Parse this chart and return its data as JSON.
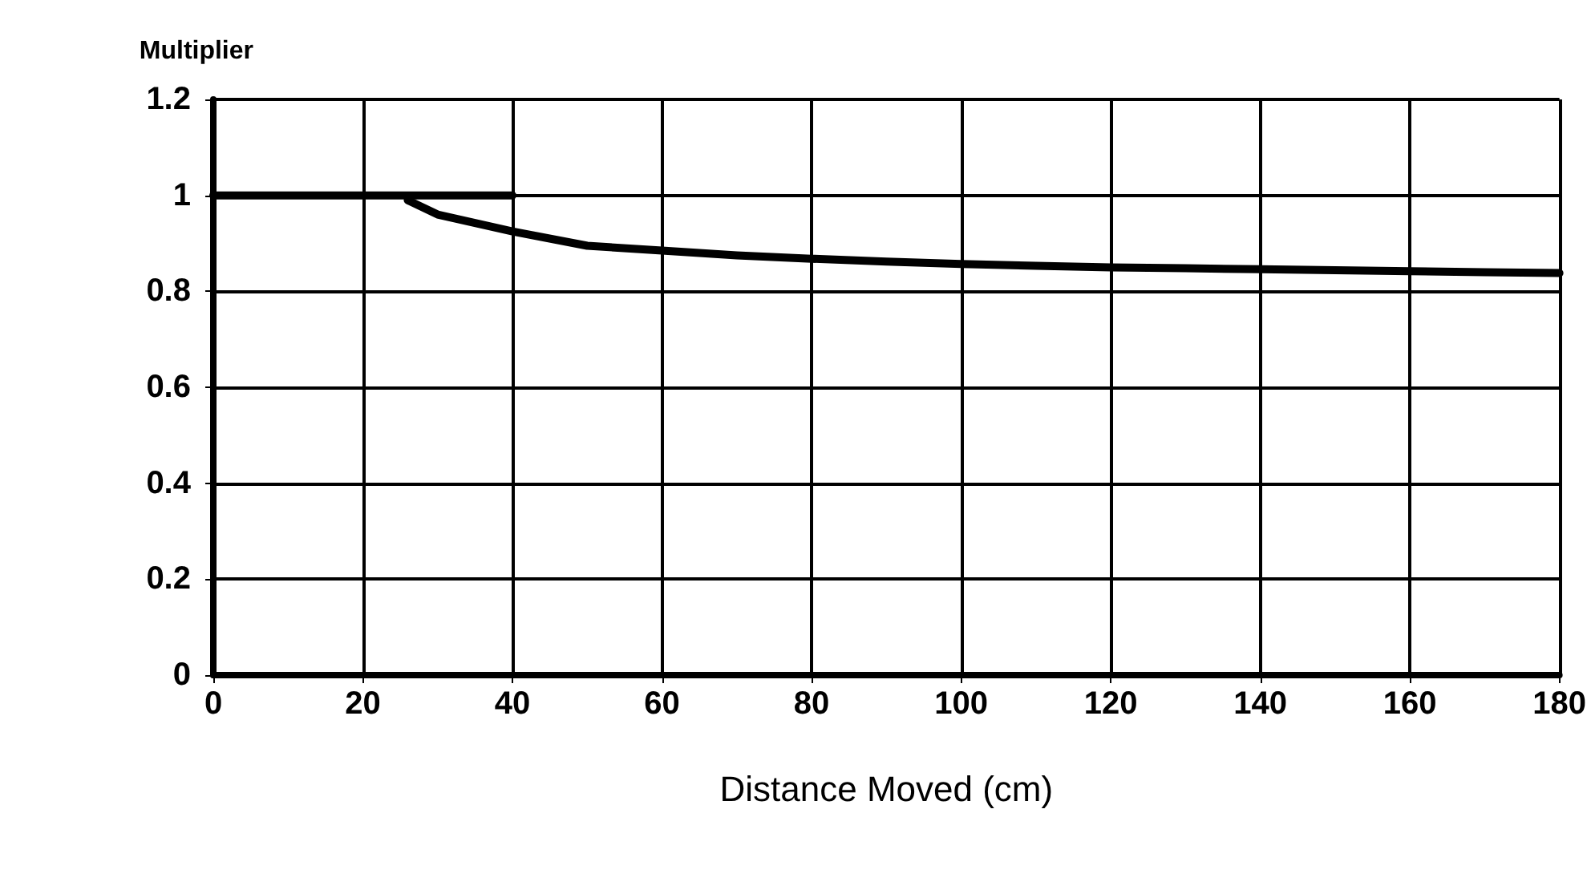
{
  "chart_data": {
    "type": "line",
    "xlabel": "Distance Moved (cm)",
    "ylabel": "Multiplier",
    "xlim": [
      0,
      180
    ],
    "xticks": [
      0,
      20,
      40,
      60,
      80,
      100,
      120,
      140,
      160,
      180
    ],
    "ylim": [
      0,
      1.2
    ],
    "yticks": [
      0,
      0.2,
      0.4,
      0.6,
      0.8,
      1,
      1.2
    ],
    "grid": true,
    "marker": "none",
    "line_style": "solid",
    "series": [
      {
        "color": "#000000",
        "x": [
          0,
          40
        ],
        "values": [
          1,
          1
        ]
      },
      {
        "color": "#000000",
        "x": [
          26,
          30,
          40,
          50,
          60,
          70,
          80,
          90,
          100,
          110,
          120,
          130,
          140,
          150,
          160,
          170,
          180
        ],
        "values": [
          0.99,
          0.96,
          0.925,
          0.895,
          0.885,
          0.875,
          0.868,
          0.862,
          0.857,
          0.853,
          0.85,
          0.848,
          0.846,
          0.844,
          0.842,
          0.84,
          0.838
        ]
      }
    ]
  }
}
